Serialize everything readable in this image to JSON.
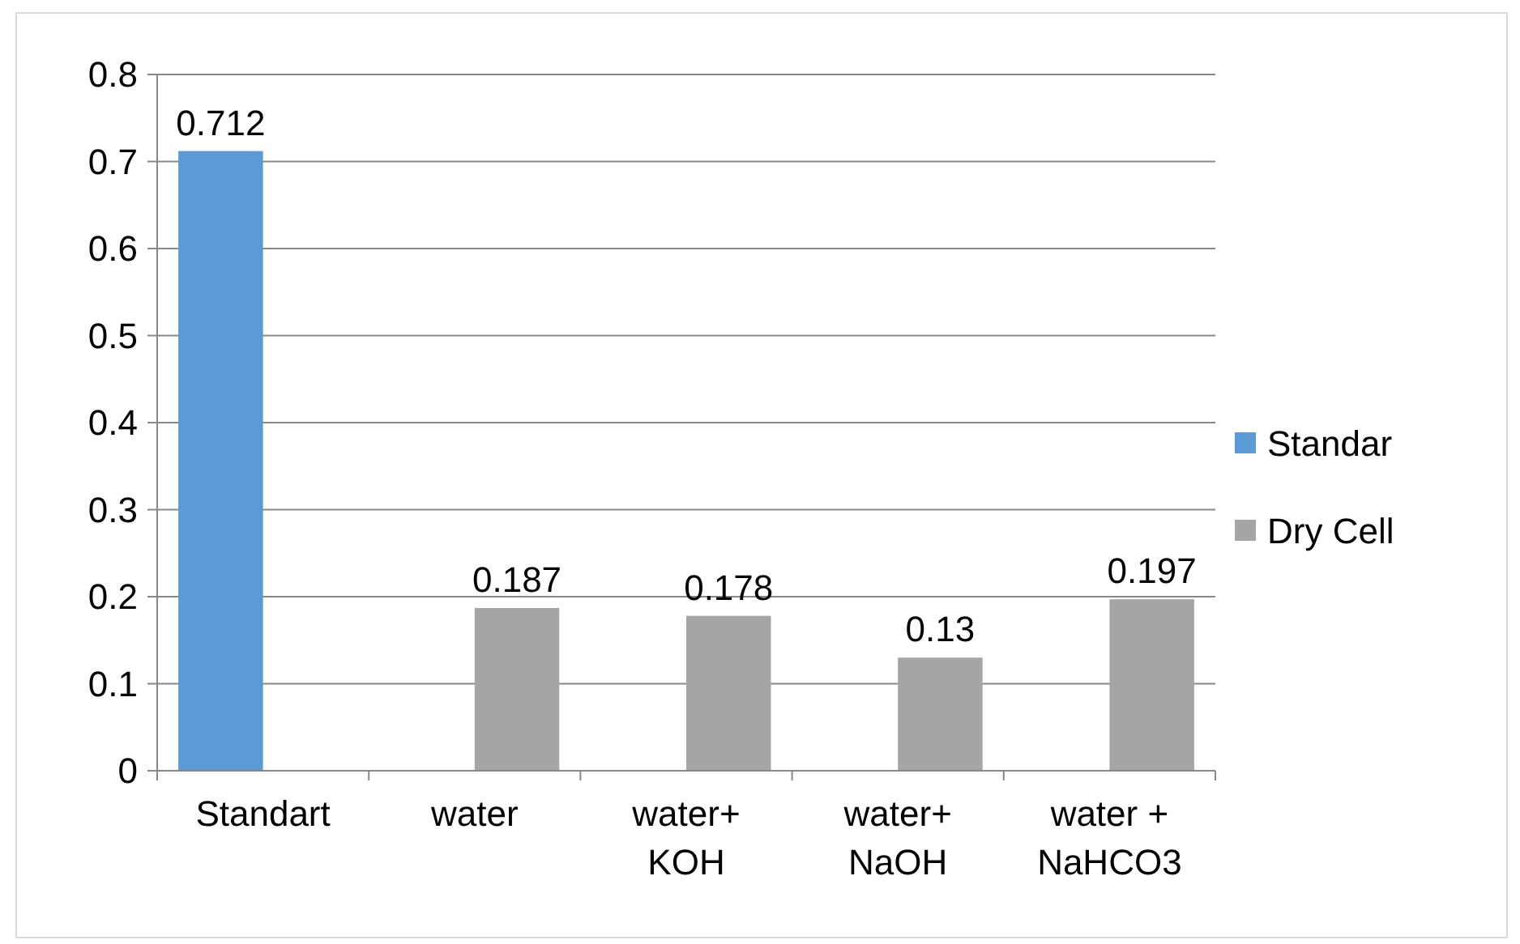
{
  "chart_data": {
    "type": "bar",
    "categories": [
      "Standart",
      "water",
      "water+ KOH",
      "water+ NaOH",
      "water + NaHCO3"
    ],
    "series": [
      {
        "name": "Standar",
        "color": "#5b9bd5",
        "values": [
          0.712,
          null,
          null,
          null,
          null
        ]
      },
      {
        "name": "Dry Cell",
        "color": "#a5a5a5",
        "values": [
          null,
          0.187,
          0.178,
          0.13,
          0.197
        ]
      }
    ],
    "ylim": [
      0,
      0.8
    ],
    "yticks": [
      0,
      0.1,
      0.2,
      0.3,
      0.4,
      0.5,
      0.6,
      0.7,
      0.8
    ],
    "grid": "y",
    "legend": "right",
    "data_labels": true
  }
}
